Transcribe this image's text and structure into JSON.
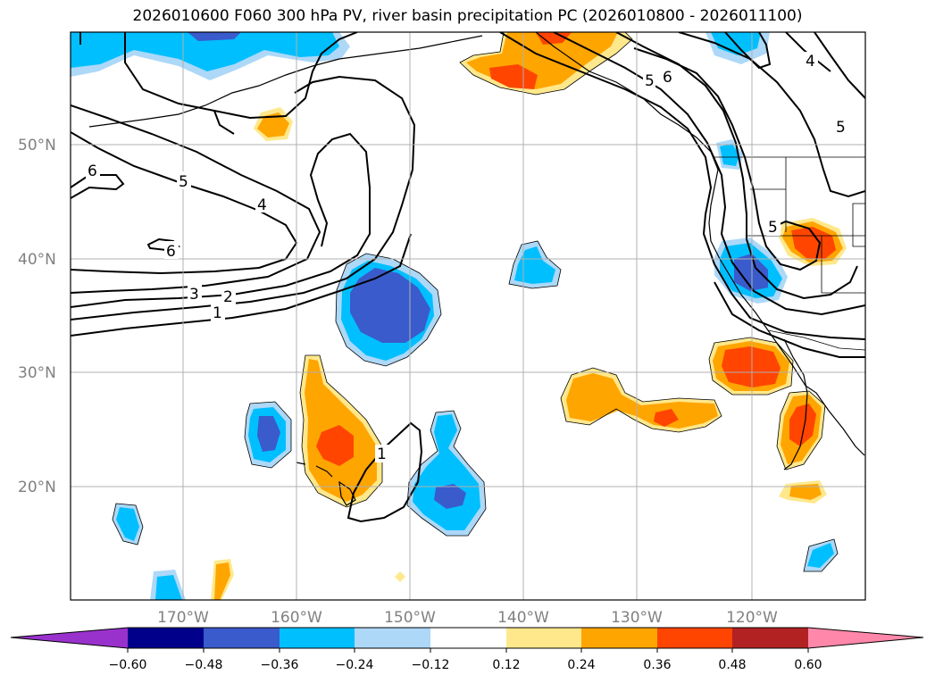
{
  "title": "2026010600 F060 300 hPa PV, river basin precipitation PC (2026010800 - 2026011100)",
  "lat_labels": [
    "50°N",
    "40°N",
    "30°N",
    "20°N"
  ],
  "lon_labels": [
    "170°W",
    "160°W",
    "150°W",
    "140°W",
    "130°W",
    "120°W"
  ],
  "colorbar": {
    "ticks": [
      "−0.60",
      "−0.48",
      "−0.36",
      "−0.24",
      "−0.12",
      "0.12",
      "0.24",
      "0.36",
      "0.48",
      "0.60"
    ],
    "colors": [
      "#9932cc",
      "#00008b",
      "#3a5bcc",
      "#00bfff",
      "#add8f7",
      "#ffffff",
      "#ffe88c",
      "#ffa500",
      "#ff4500",
      "#b22222",
      "#ff88aa"
    ]
  },
  "contour_labels": {
    "c1": "6",
    "c2": "5",
    "c3": "4",
    "c4": "6",
    "c5": "3",
    "c6": "2",
    "c7": "1",
    "c8": "5",
    "c9": "6",
    "c10": "4",
    "c11": "5",
    "c12": "5",
    "c13": "1"
  },
  "colors": {
    "grid": "#b0b0b0",
    "contour": "#000000"
  }
}
